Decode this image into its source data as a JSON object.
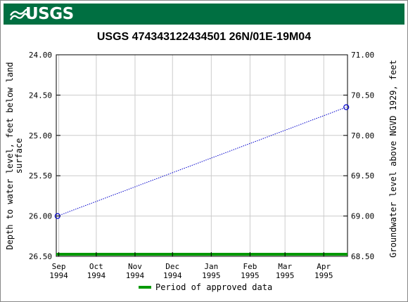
{
  "header": {
    "logo_text": "USGS",
    "brand_color": "#006F41"
  },
  "chart_data": {
    "type": "line",
    "title": "USGS 474343122434501 26N/01E-19M04",
    "ylabel_left": "Depth to water level, feet below land surface",
    "ylabel_right": "Groundwater level above NGVD 1929, feet",
    "y_left": {
      "min": 24.0,
      "max": 26.5,
      "inverted": true,
      "ticks": [
        "24.00",
        "24.50",
        "25.00",
        "25.50",
        "26.00",
        "26.50"
      ]
    },
    "y_right": {
      "min": 68.5,
      "max": 71.0,
      "ticks": [
        "71.00",
        "70.50",
        "70.00",
        "69.50",
        "69.00",
        "68.50"
      ]
    },
    "x_ticks": [
      {
        "month": "Sep",
        "year": "1994"
      },
      {
        "month": "Oct",
        "year": "1994"
      },
      {
        "month": "Nov",
        "year": "1994"
      },
      {
        "month": "Dec",
        "year": "1994"
      },
      {
        "month": "Jan",
        "year": "1995"
      },
      {
        "month": "Feb",
        "year": "1995"
      },
      {
        "month": "Mar",
        "year": "1995"
      },
      {
        "month": "Apr",
        "year": "1995"
      }
    ],
    "x_tick_dates": [
      "1994-09-01",
      "1994-10-01",
      "1994-11-01",
      "1994-12-01",
      "1995-01-01",
      "1995-02-01",
      "1995-03-01",
      "1995-04-01"
    ],
    "x_range": [
      "1994-08-30",
      "1995-04-20"
    ],
    "series": [
      {
        "color": "#0000CC",
        "points": [
          {
            "date": "1994-08-31",
            "depth": 26.0
          },
          {
            "date": "1995-04-19",
            "depth": 24.65
          }
        ]
      }
    ],
    "approved_period": {
      "color": "#009900",
      "from": "1994-08-30",
      "to": "1995-04-20"
    },
    "legend": [
      {
        "label": "Period of approved data",
        "color": "#009900"
      }
    ],
    "grid": true
  }
}
